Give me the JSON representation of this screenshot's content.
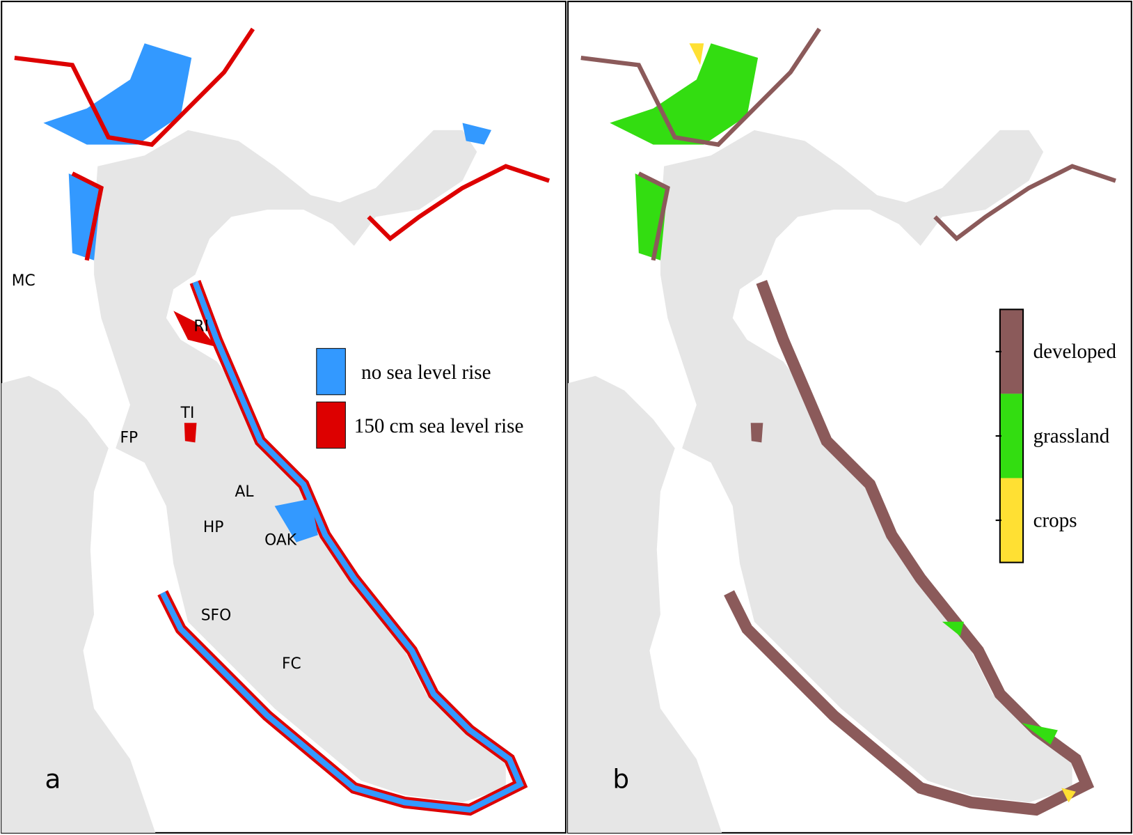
{
  "panels": [
    {
      "letter": "a",
      "places": [
        "MC",
        "RI",
        "TI",
        "FP",
        "AL",
        "HP",
        "OAK",
        "SFO",
        "FC"
      ],
      "legend": [
        {
          "label": "no sea level rise",
          "color": "#3399ff"
        },
        {
          "label": "150 cm sea level rise",
          "color": "#dd0000"
        }
      ]
    },
    {
      "letter": "b",
      "legend": [
        {
          "label": "developed",
          "color": "#8b5a5a"
        },
        {
          "label": "grassland",
          "color": "#33dd11"
        },
        {
          "label": "crops",
          "color": "#ffe033"
        }
      ]
    }
  ]
}
